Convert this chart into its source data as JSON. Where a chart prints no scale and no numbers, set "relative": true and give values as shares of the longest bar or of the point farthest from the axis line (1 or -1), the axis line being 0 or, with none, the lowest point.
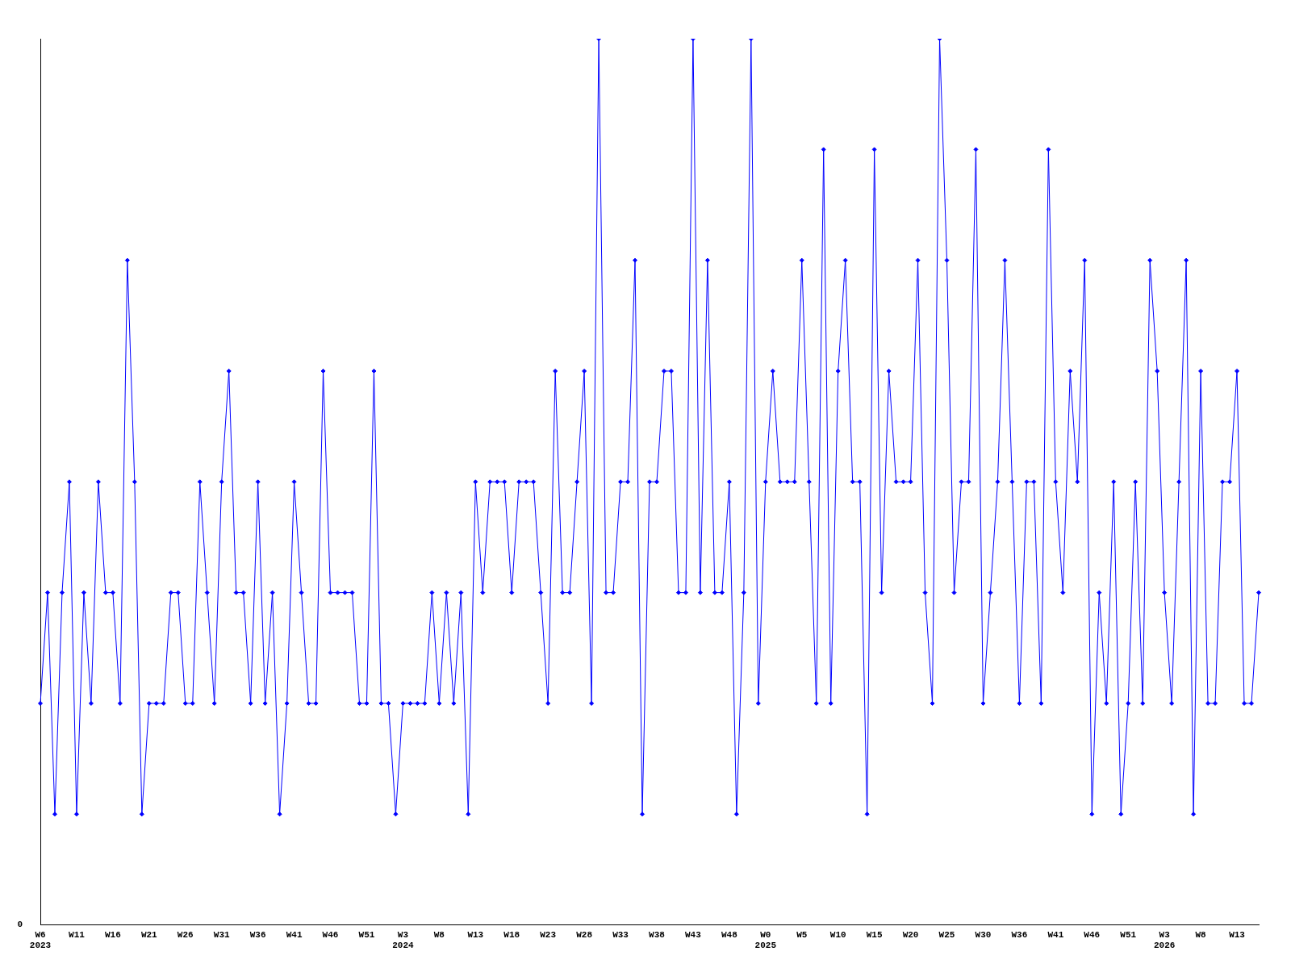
{
  "chart_data": {
    "type": "line",
    "relative": true,
    "color": "#0000ff",
    "marker": "diamond",
    "line_style": "solid",
    "grid": false,
    "legend": false,
    "annotations": [
      "0"
    ],
    "categories": [
      "W6\n2023",
      null,
      null,
      null,
      null,
      "W11",
      null,
      null,
      null,
      null,
      "W16",
      null,
      null,
      null,
      null,
      "W21",
      null,
      null,
      null,
      null,
      "W26",
      null,
      null,
      null,
      null,
      "W31",
      null,
      null,
      null,
      null,
      "W36",
      null,
      null,
      null,
      null,
      "W41",
      null,
      null,
      null,
      null,
      "W46",
      null,
      null,
      null,
      null,
      "W51",
      null,
      null,
      null,
      null,
      "W3\n2024",
      null,
      null,
      null,
      null,
      "W8",
      null,
      null,
      null,
      null,
      "W13",
      null,
      null,
      null,
      null,
      "W18",
      null,
      null,
      null,
      null,
      "W23",
      null,
      null,
      null,
      null,
      "W28",
      null,
      null,
      null,
      null,
      "W33",
      null,
      null,
      null,
      null,
      "W38",
      null,
      null,
      null,
      null,
      "W43",
      null,
      null,
      null,
      null,
      "W48",
      null,
      null,
      null,
      null,
      "W0\n2025",
      null,
      null,
      null,
      null,
      "W5",
      null,
      null,
      null,
      null,
      "W10",
      null,
      null,
      null,
      null,
      "W15",
      null,
      null,
      null,
      null,
      "W20",
      null,
      null,
      null,
      null,
      "W25",
      null,
      null,
      null,
      null,
      "W30",
      null,
      null,
      null,
      null,
      "W36",
      null,
      null,
      null,
      null,
      "W41",
      null,
      null,
      null,
      null,
      "W46",
      null,
      null,
      null,
      null,
      "W51",
      null,
      null,
      null,
      null,
      "W3\n2026",
      null,
      null,
      null,
      null,
      "W8",
      null,
      null,
      null,
      null,
      "W13",
      null,
      null,
      null
    ],
    "values": [
      0.25,
      0.375,
      0.125,
      0.375,
      0.5,
      0.125,
      0.375,
      0.25,
      0.5,
      0.375,
      0.375,
      0.25,
      0.75,
      0.5,
      0.125,
      0.25,
      0.25,
      0.25,
      0.375,
      0.375,
      0.25,
      0.25,
      0.5,
      0.375,
      0.25,
      0.5,
      0.625,
      0.375,
      0.375,
      0.25,
      0.5,
      0.25,
      0.375,
      0.125,
      0.25,
      0.5,
      0.375,
      0.25,
      0.25,
      0.625,
      0.375,
      0.375,
      0.375,
      0.375,
      0.25,
      0.25,
      0.625,
      0.25,
      0.25,
      0.125,
      0.25,
      0.25,
      0.25,
      0.25,
      0.375,
      0.25,
      0.375,
      0.25,
      0.375,
      0.125,
      0.5,
      0.375,
      0.5,
      0.5,
      0.5,
      0.375,
      0.5,
      0.5,
      0.5,
      0.375,
      0.25,
      0.625,
      0.375,
      0.375,
      0.5,
      0.625,
      0.25,
      1,
      0.375,
      0.375,
      0.5,
      0.5,
      0.75,
      0.125,
      0.5,
      0.5,
      0.625,
      0.625,
      0.375,
      0.375,
      1,
      0.375,
      0.75,
      0.375,
      0.375,
      0.5,
      0.125,
      0.375,
      1,
      0.25,
      0.5,
      0.625,
      0.5,
      0.5,
      0.5,
      0.75,
      0.5,
      0.25,
      0.875,
      0.25,
      0.625,
      0.75,
      0.5,
      0.5,
      0.125,
      0.875,
      0.375,
      0.625,
      0.5,
      0.5,
      0.5,
      0.75,
      0.375,
      0.25,
      1,
      0.75,
      0.375,
      0.5,
      0.5,
      0.875,
      0.25,
      0.375,
      0.5,
      0.75,
      0.5,
      0.25,
      0.5,
      0.5,
      0.25,
      0.875,
      0.5,
      0.375,
      0.625,
      0.5,
      0.75,
      0.125,
      0.375,
      0.25,
      0.5,
      0.125,
      0.25,
      0.5,
      0.25,
      0.75,
      0.625,
      0.375,
      0.25,
      0.5,
      0.75,
      0.125,
      0.625,
      0.25,
      0.25,
      0.5,
      0.5,
      0.625,
      0.25,
      0.25,
      0.375
    ]
  }
}
